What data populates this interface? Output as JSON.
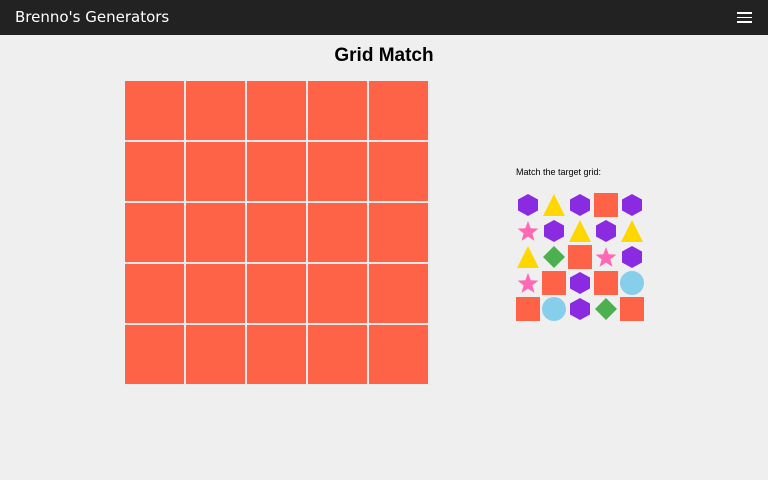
{
  "header": {
    "title": "Brenno's Generators",
    "menu_icon": "hamburger-menu-icon"
  },
  "page": {
    "title": "Grid Match"
  },
  "main_grid": {
    "rows": 5,
    "cols": 5,
    "cell_color": "#ff6347"
  },
  "target": {
    "label": "Match the target grid:",
    "colors": {
      "hexagon": "#8a2be2",
      "triangle": "#ffd700",
      "square": "#ff6347",
      "star": "#ff69b4",
      "diamond": "#4caf50",
      "circle": "#87ceeb"
    },
    "grid": [
      [
        "hexagon",
        "triangle",
        "hexagon",
        "square",
        "hexagon"
      ],
      [
        "star",
        "hexagon",
        "triangle",
        "hexagon",
        "triangle"
      ],
      [
        "triangle",
        "diamond",
        "square",
        "star",
        "hexagon"
      ],
      [
        "star",
        "square",
        "hexagon",
        "square",
        "circle"
      ],
      [
        "square",
        "circle",
        "hexagon",
        "diamond",
        "square"
      ]
    ]
  }
}
